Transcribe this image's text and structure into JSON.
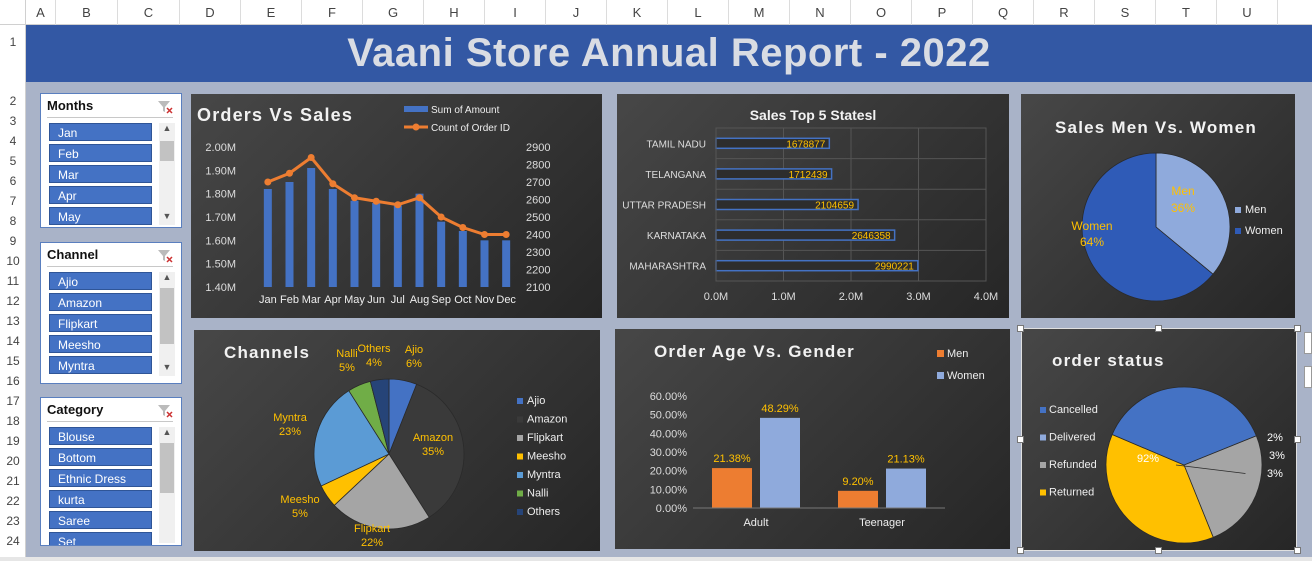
{
  "columns": [
    "A",
    "B",
    "C",
    "D",
    "E",
    "F",
    "G",
    "H",
    "I",
    "J",
    "K",
    "L",
    "M",
    "N",
    "O",
    "P",
    "Q",
    "R",
    "S",
    "T",
    "U"
  ],
  "rows": [
    "1",
    "2",
    "3",
    "4",
    "5",
    "6",
    "7",
    "8",
    "9",
    "10",
    "11",
    "12",
    "13",
    "14",
    "15",
    "16",
    "17",
    "18",
    "19",
    "20",
    "21",
    "22",
    "23",
    "24"
  ],
  "banner": {
    "title": "Vaani Store Annual Report - 2022"
  },
  "slicers": {
    "months": {
      "title": "Months",
      "items": [
        "Jan",
        "Feb",
        "Mar",
        "Apr",
        "May"
      ]
    },
    "channel": {
      "title": "Channel",
      "items": [
        "Ajio",
        "Amazon",
        "Flipkart",
        "Meesho",
        "Myntra"
      ]
    },
    "category": {
      "title": "Category",
      "items": [
        "Blouse",
        "Bottom",
        "Ethnic Dress",
        "kurta",
        "Saree",
        "Set"
      ]
    }
  },
  "colors": {
    "bar_blue": "#4472c4",
    "line_orange": "#ed7d31",
    "label_yellow": "#ffc000",
    "light_blue": "#8faadc",
    "banner": "#3358a4"
  },
  "chart_data": [
    {
      "id": "orders_vs_sales",
      "type": "bar",
      "title": "Orders Vs Sales",
      "categories": [
        "Jan",
        "Feb",
        "Mar",
        "Apr",
        "May",
        "Jun",
        "Jul",
        "Aug",
        "Sep",
        "Oct",
        "Nov",
        "Dec"
      ],
      "series": [
        {
          "name": "Sum of Amount",
          "kind": "bar",
          "axis": "left",
          "values": [
            1.82,
            1.85,
            1.91,
            1.82,
            1.77,
            1.76,
            1.75,
            1.8,
            1.68,
            1.64,
            1.6,
            1.6
          ]
        },
        {
          "name": "Count of Order ID",
          "kind": "line",
          "axis": "right",
          "values": [
            2700,
            2750,
            2840,
            2690,
            2610,
            2590,
            2570,
            2610,
            2500,
            2440,
            2400,
            2400
          ]
        }
      ],
      "y_left_ticks": [
        "2.00M",
        "1.90M",
        "1.80M",
        "1.70M",
        "1.60M",
        "1.50M",
        "1.40M"
      ],
      "y_left_range": [
        1.4,
        2.0
      ],
      "y_right_ticks": [
        "2900",
        "2800",
        "2700",
        "2600",
        "2500",
        "2400",
        "2300",
        "2200",
        "2100"
      ],
      "y_right_range": [
        2100,
        2900
      ]
    },
    {
      "id": "sales_top5_states",
      "type": "bar",
      "orientation": "horizontal",
      "title": "Sales Top 5 Statesl",
      "categories": [
        "TAMIL NADU",
        "TELANGANA",
        "UTTAR PRADESH",
        "KARNATAKA",
        "MAHARASHTRA"
      ],
      "values": [
        1678877,
        1712439,
        2104659,
        2646358,
        2990221
      ],
      "x_ticks": [
        "0.0M",
        "1.0M",
        "2.0M",
        "3.0M",
        "4.0M"
      ],
      "xlim": [
        0,
        4000000
      ]
    },
    {
      "id": "sales_men_women",
      "type": "pie",
      "title": "Sales Men Vs. Women",
      "labels": [
        "Men",
        "Women"
      ],
      "values": [
        36,
        64
      ],
      "value_labels": [
        "36%",
        "64%"
      ],
      "colors": [
        "#8faadc",
        "#2f5bb7"
      ],
      "legend": "right"
    },
    {
      "id": "channels",
      "type": "pie",
      "title": "Channels",
      "labels": [
        "Ajio",
        "Amazon",
        "Flipkart",
        "Meesho",
        "Myntra",
        "Nalli",
        "Others"
      ],
      "values": [
        6,
        35,
        22,
        5,
        23,
        5,
        4
      ],
      "value_labels": [
        "6%",
        "35%",
        "22%",
        "5%",
        "23%",
        "5%",
        "4%"
      ],
      "colors": [
        "#4472c4",
        "#3a3a3a",
        "#a5a5a5",
        "#ffc000",
        "#5b9bd5",
        "#70ad47",
        "#264478"
      ],
      "legend": "right"
    },
    {
      "id": "order_age_gender",
      "type": "bar",
      "title": "Order Age Vs. Gender",
      "categories": [
        "Adult",
        "Teenager"
      ],
      "series": [
        {
          "name": "Men",
          "values": [
            21.38,
            9.2
          ],
          "labels": [
            "21.38%",
            "9.20%"
          ],
          "color": "#ed7d31"
        },
        {
          "name": "Women",
          "values": [
            48.29,
            21.13
          ],
          "labels": [
            "48.29%",
            "21.13%"
          ],
          "color": "#8faadc"
        }
      ],
      "y_ticks": [
        "60.00%",
        "50.00%",
        "40.00%",
        "30.00%",
        "20.00%",
        "10.00%",
        "0.00%"
      ],
      "ylim": [
        0,
        60
      ],
      "legend": "top-right"
    },
    {
      "id": "order_status",
      "type": "pie",
      "title": "order status",
      "labels": [
        "Cancelled",
        "Delivered",
        "Refunded",
        "Returned"
      ],
      "values": [
        3,
        92,
        2,
        3
      ],
      "value_labels": [
        "3%",
        "92%",
        "2%",
        "3%"
      ],
      "colors": [
        "#4472c4",
        "#8faadc",
        "#a5a5a5",
        "#ffc000"
      ],
      "legend": "left"
    }
  ]
}
